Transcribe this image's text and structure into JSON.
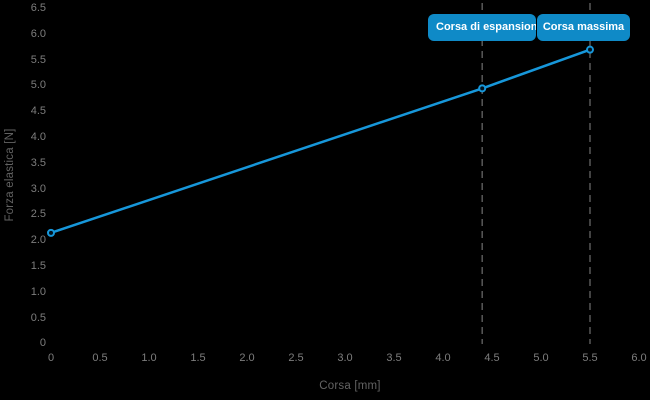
{
  "chart_data": {
    "type": "line",
    "title": "",
    "xlabel": "Corsa [mm]",
    "ylabel": "Forza elastica [N]",
    "xlim": [
      0,
      6.0
    ],
    "ylim": [
      0,
      6.5
    ],
    "grid": false,
    "x_tick_labels": [
      "0",
      "0.5",
      "1.0",
      "1.5",
      "2.0",
      "2.5",
      "3.0",
      "3.5",
      "4.0",
      "4.5",
      "5.0",
      "5.5",
      "6.0"
    ],
    "x_tick_values": [
      0,
      0.5,
      1.0,
      1.5,
      2.0,
      2.5,
      3.0,
      3.5,
      4.0,
      4.5,
      5.0,
      5.5,
      6.0
    ],
    "y_tick_labels": [
      "0",
      "0.5",
      "1.0",
      "1.5",
      "2.0",
      "2.5",
      "3.0",
      "3.5",
      "4.0",
      "4.5",
      "5.0",
      "5.5",
      "6.0",
      "6.5"
    ],
    "y_tick_values": [
      0,
      0.5,
      1.0,
      1.5,
      2.0,
      2.5,
      3.0,
      3.5,
      4.0,
      4.5,
      5.0,
      5.5,
      6.0,
      6.5
    ],
    "series": [
      {
        "name": "Forza elastica",
        "x": [
          0,
          4.4,
          5.5
        ],
        "y": [
          2.15,
          4.95,
          5.7
        ]
      }
    ],
    "annotations": [
      {
        "label": "Corsa di espansione",
        "x": 4.4
      },
      {
        "label": "Corsa massima",
        "x": 5.5
      }
    ],
    "colors": {
      "background": "#000000",
      "line": "#1797da",
      "marker_fill": "#02121d",
      "annotation_bg": "#0f8ac7",
      "annotation_text": "#ffffff",
      "tick_text": "#7d7d7d",
      "axis_title_text": "#636363",
      "dashed_line": "#595959"
    }
  }
}
